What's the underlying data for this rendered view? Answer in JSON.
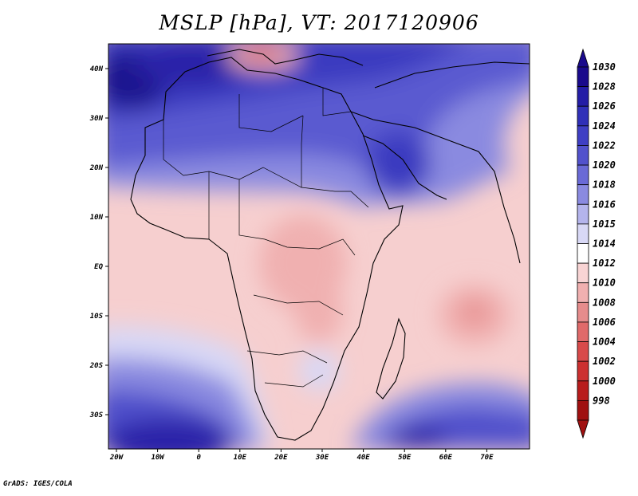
{
  "title": "MSLP [hPa], VT: 2017120906",
  "footer": "GrADS: IGES/COLA",
  "lon_ticks": [
    "20W",
    "10W",
    "0",
    "10E",
    "20E",
    "30E",
    "40E",
    "50E",
    "60E",
    "70E"
  ],
  "lat_ticks": [
    "40N",
    "30N",
    "20N",
    "10N",
    "EQ",
    "10S",
    "20S",
    "30S"
  ],
  "colorbar": {
    "levels": [
      "1030",
      "1028",
      "1026",
      "1024",
      "1022",
      "1020",
      "1018",
      "1016",
      "1015",
      "1014",
      "1012",
      "1010",
      "1008",
      "1006",
      "1004",
      "1002",
      "1000",
      "998"
    ],
    "colors": [
      "#1a0a8c",
      "#241da6",
      "#3030b8",
      "#3f3fc4",
      "#5252cc",
      "#6a6ad6",
      "#8a8ae0",
      "#b4b4ec",
      "#d8d8f6",
      "#ffffff",
      "#f8d4d4",
      "#f0b0b0",
      "#e68c8c",
      "#e06a6a",
      "#d84a4a",
      "#cc3030",
      "#b81c1c",
      "#a01010"
    ]
  },
  "colors": {
    "high": "#2a1fa8",
    "low": "#f0a8a8",
    "neutral": "#ffffff",
    "coast": "#000000"
  }
}
